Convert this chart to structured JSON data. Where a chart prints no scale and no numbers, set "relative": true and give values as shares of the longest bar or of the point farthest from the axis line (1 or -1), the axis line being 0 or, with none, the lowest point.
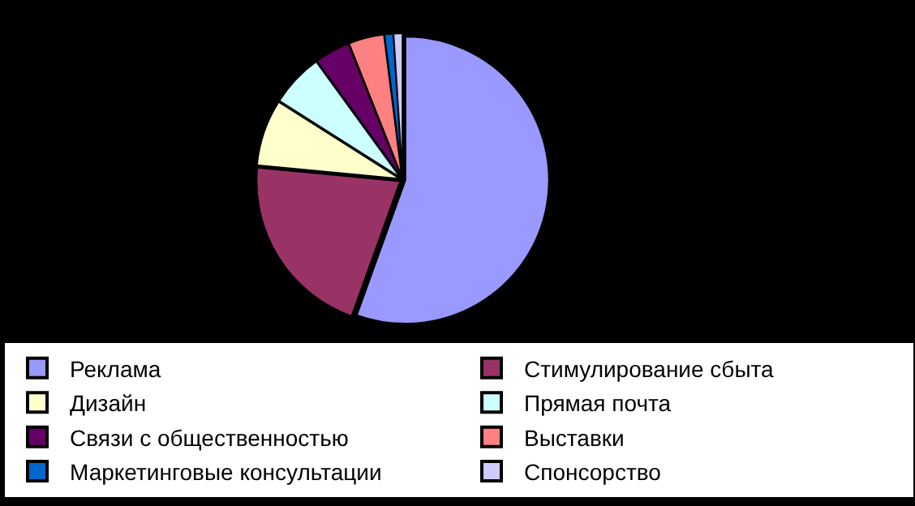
{
  "chart_data": {
    "type": "pie",
    "relative": true,
    "categories": [
      "Реклама",
      "Стимулирование сбыта",
      "Дизайн",
      "Прямая почта",
      "Связи с общественностью",
      "Выставки",
      "Маркетинговые консультации",
      "Спонсорство"
    ],
    "values": [
      55.5,
      21,
      7.5,
      6,
      4,
      4,
      1,
      1
    ],
    "colors": [
      "#9999ff",
      "#993366",
      "#ffffcc",
      "#ccffff",
      "#660066",
      "#ff8080",
      "#0066cc",
      "#ccccff"
    ],
    "legend": "bottom"
  }
}
